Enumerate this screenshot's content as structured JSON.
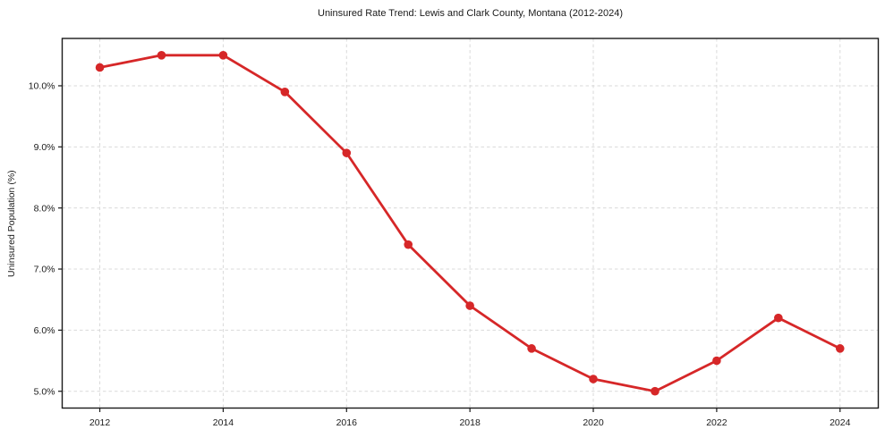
{
  "chart_data": {
    "type": "line",
    "title": "Uninsured Rate Trend: Lewis and Clark County, Montana (2012-2024)",
    "xlabel": "",
    "ylabel": "Uninsured Population (%)",
    "x": [
      2012,
      2013,
      2014,
      2015,
      2016,
      2017,
      2018,
      2019,
      2020,
      2021,
      2022,
      2023,
      2024
    ],
    "values": [
      10.3,
      10.5,
      10.5,
      9.9,
      8.9,
      7.4,
      6.4,
      5.7,
      5.2,
      5.0,
      5.5,
      6.2,
      5.7
    ],
    "xticks": {
      "values": [
        2012,
        2014,
        2016,
        2018,
        2020,
        2022,
        2024
      ],
      "labels": [
        "2012",
        "2014",
        "2016",
        "2018",
        "2020",
        "2022",
        "2024"
      ]
    },
    "yticks": {
      "values": [
        5.0,
        6.0,
        7.0,
        8.0,
        9.0,
        10.0
      ],
      "labels": [
        "5.0%",
        "6.0%",
        "7.0%",
        "8.0%",
        "9.0%",
        "10.0%"
      ]
    },
    "xlim": [
      2011.39,
      2024.62
    ],
    "ylim": [
      4.725,
      10.775
    ],
    "grid": true,
    "grid_style": "dashed",
    "legend": false,
    "line_color": "#d62728",
    "marker": "circle",
    "marker_color": "#d62728"
  }
}
